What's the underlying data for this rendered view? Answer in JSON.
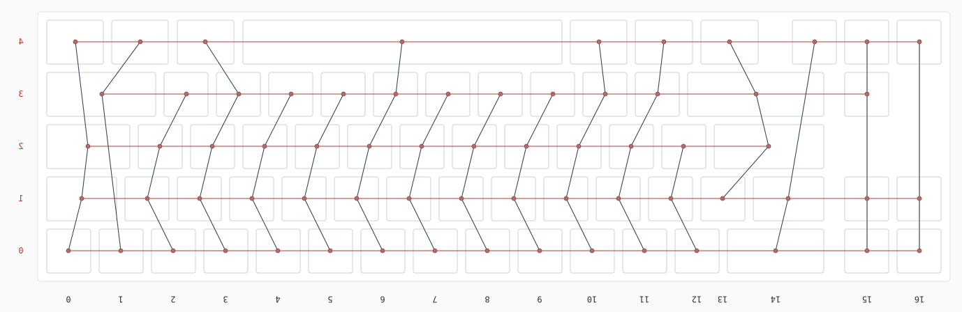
{
  "title": "",
  "row_labels": [
    "4",
    "3",
    "2",
    "1",
    "0"
  ],
  "col_labels": [
    "0",
    "1",
    "2",
    "3",
    "4",
    "5",
    "6",
    "7",
    "8",
    "9",
    "10",
    "11",
    "12",
    "13",
    "14",
    "15",
    "16"
  ],
  "colors": {
    "row_line": "#b33a3a",
    "wire": "#34495e",
    "node": "#b36a6a",
    "key_border": "#cfcfcf",
    "row_label": "#c0392b"
  }
}
